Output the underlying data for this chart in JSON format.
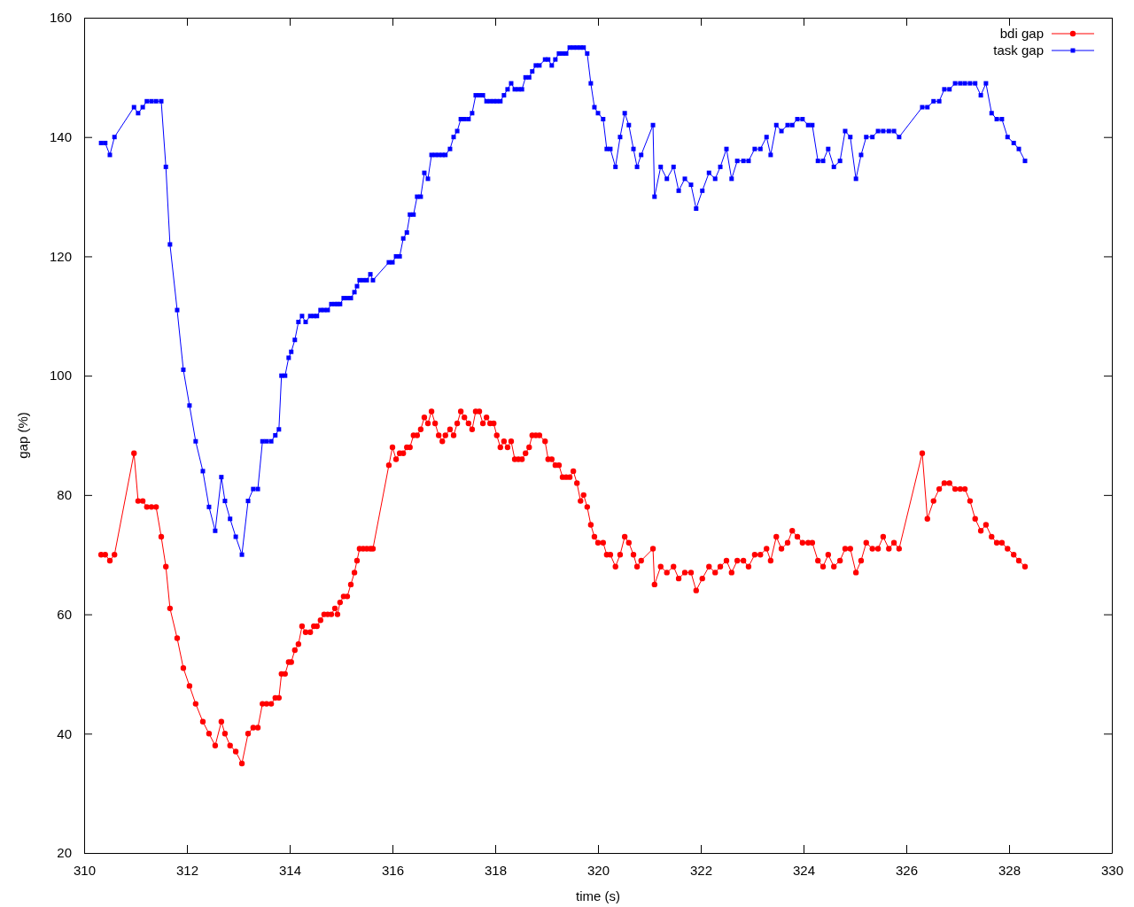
{
  "chart_data": {
    "type": "line",
    "xlabel": "time (s)",
    "ylabel": "gap (%)",
    "xlim": [
      310,
      330
    ],
    "xticks": [
      310,
      312,
      314,
      316,
      318,
      320,
      322,
      324,
      326,
      328,
      330
    ],
    "ylim": [
      20,
      160
    ],
    "yticks": [
      20,
      40,
      60,
      80,
      100,
      120,
      140,
      160
    ],
    "grid": false,
    "legend": "top right",
    "line_style": "solid",
    "x": [
      310.33,
      310.41,
      310.5,
      310.59,
      310.97,
      311.05,
      311.14,
      311.22,
      311.31,
      311.4,
      311.5,
      311.59,
      311.67,
      311.81,
      311.93,
      312.05,
      312.17,
      312.31,
      312.43,
      312.55,
      312.67,
      312.74,
      312.84,
      312.95,
      313.07,
      313.19,
      313.29,
      313.38,
      313.47,
      313.55,
      313.64,
      313.72,
      313.79,
      313.84,
      313.91,
      313.98,
      314.03,
      314.1,
      314.17,
      314.24,
      314.31,
      314.4,
      314.47,
      314.53,
      314.6,
      314.67,
      314.74,
      314.81,
      314.88,
      314.93,
      314.98,
      315.05,
      315.12,
      315.19,
      315.26,
      315.31,
      315.36,
      315.43,
      315.5,
      315.57,
      315.62,
      315.93,
      316.0,
      316.07,
      316.14,
      316.21,
      316.28,
      316.34,
      316.41,
      316.48,
      316.55,
      316.62,
      316.69,
      316.76,
      316.83,
      316.9,
      316.97,
      317.03,
      317.12,
      317.19,
      317.26,
      317.33,
      317.4,
      317.48,
      317.55,
      317.62,
      317.69,
      317.76,
      317.83,
      317.9,
      317.97,
      318.03,
      318.1,
      318.17,
      318.24,
      318.31,
      318.38,
      318.45,
      318.52,
      318.59,
      318.66,
      318.72,
      318.79,
      318.86,
      318.97,
      319.03,
      319.1,
      319.17,
      319.24,
      319.31,
      319.38,
      319.45,
      319.52,
      319.59,
      319.66,
      319.72,
      319.79,
      319.86,
      319.93,
      320.0,
      320.1,
      320.17,
      320.24,
      320.34,
      320.43,
      320.52,
      320.6,
      320.69,
      320.76,
      320.84,
      321.07,
      321.1,
      321.22,
      321.34,
      321.47,
      321.57,
      321.69,
      321.81,
      321.91,
      322.03,
      322.16,
      322.28,
      322.38,
      322.5,
      322.6,
      322.71,
      322.83,
      322.93,
      323.05,
      323.16,
      323.28,
      323.36,
      323.47,
      323.57,
      323.69,
      323.78,
      323.88,
      323.98,
      324.09,
      324.17,
      324.28,
      324.38,
      324.48,
      324.59,
      324.71,
      324.81,
      324.91,
      325.02,
      325.12,
      325.22,
      325.34,
      325.45,
      325.55,
      325.66,
      325.76,
      325.86,
      326.31,
      326.41,
      326.53,
      326.64,
      326.74,
      326.84,
      326.95,
      327.05,
      327.14,
      327.24,
      327.34,
      327.45,
      327.55,
      327.66,
      327.76,
      327.86,
      327.97,
      328.09,
      328.19,
      328.31
    ],
    "series": [
      {
        "name": "bdi gap",
        "color": "#ff0000",
        "marker": "circle",
        "values": [
          70,
          70,
          69,
          70,
          87,
          79,
          79,
          78,
          78,
          78,
          73,
          68,
          61,
          56,
          51,
          48,
          45,
          42,
          40,
          38,
          42,
          40,
          38,
          37,
          35,
          40,
          41,
          41,
          45,
          45,
          45,
          46,
          46,
          50,
          50,
          52,
          52,
          54,
          55,
          58,
          57,
          57,
          58,
          58,
          59,
          60,
          60,
          60,
          61,
          60,
          62,
          63,
          63,
          65,
          67,
          69,
          71,
          71,
          71,
          71,
          71,
          85,
          88,
          86,
          87,
          87,
          88,
          88,
          90,
          90,
          91,
          93,
          92,
          94,
          92,
          90,
          89,
          90,
          91,
          90,
          92,
          94,
          93,
          92,
          91,
          94,
          94,
          92,
          93,
          92,
          92,
          90,
          88,
          89,
          88,
          89,
          86,
          86,
          86,
          87,
          88,
          90,
          90,
          90,
          89,
          86,
          86,
          85,
          85,
          83,
          83,
          83,
          84,
          82,
          79,
          80,
          78,
          75,
          73,
          72,
          72,
          70,
          70,
          68,
          70,
          73,
          72,
          70,
          68,
          69,
          71,
          65,
          68,
          67,
          68,
          66,
          67,
          67,
          64,
          66,
          68,
          67,
          68,
          69,
          67,
          69,
          69,
          68,
          70,
          70,
          71,
          69,
          73,
          71,
          72,
          74,
          73,
          72,
          72,
          72,
          69,
          68,
          70,
          68,
          69,
          71,
          71,
          67,
          69,
          72,
          71,
          71,
          73,
          71,
          72,
          71,
          87,
          76,
          79,
          81,
          82,
          82,
          81,
          81,
          81,
          79,
          76,
          74,
          75,
          73,
          72,
          72,
          71,
          70,
          69,
          68
        ]
      },
      {
        "name": "task gap",
        "color": "#0000ff",
        "marker": "square",
        "values": [
          139,
          139,
          137,
          140,
          145,
          144,
          145,
          146,
          146,
          146,
          146,
          135,
          122,
          111,
          101,
          95,
          89,
          84,
          78,
          74,
          83,
          79,
          76,
          73,
          70,
          79,
          81,
          81,
          89,
          89,
          89,
          90,
          91,
          100,
          100,
          103,
          104,
          106,
          109,
          110,
          109,
          110,
          110,
          110,
          111,
          111,
          111,
          112,
          112,
          112,
          112,
          113,
          113,
          113,
          114,
          115,
          116,
          116,
          116,
          117,
          116,
          119,
          119,
          120,
          120,
          123,
          124,
          127,
          127,
          130,
          130,
          134,
          133,
          137,
          137,
          137,
          137,
          137,
          138,
          140,
          141,
          143,
          143,
          143,
          144,
          147,
          147,
          147,
          146,
          146,
          146,
          146,
          146,
          147,
          148,
          149,
          148,
          148,
          148,
          150,
          150,
          151,
          152,
          152,
          153,
          153,
          152,
          153,
          154,
          154,
          154,
          155,
          155,
          155,
          155,
          155,
          154,
          149,
          145,
          144,
          143,
          138,
          138,
          135,
          140,
          144,
          142,
          138,
          135,
          137,
          142,
          130,
          135,
          133,
          135,
          131,
          133,
          132,
          128,
          131,
          134,
          133,
          135,
          138,
          133,
          136,
          136,
          136,
          138,
          138,
          140,
          137,
          142,
          141,
          142,
          142,
          143,
          143,
          142,
          142,
          136,
          136,
          138,
          135,
          136,
          141,
          140,
          133,
          137,
          140,
          140,
          141,
          141,
          141,
          141,
          140,
          145,
          145,
          146,
          146,
          148,
          148,
          149,
          149,
          149,
          149,
          149,
          147,
          149,
          144,
          143,
          143,
          140,
          139,
          138,
          136
        ]
      }
    ]
  }
}
